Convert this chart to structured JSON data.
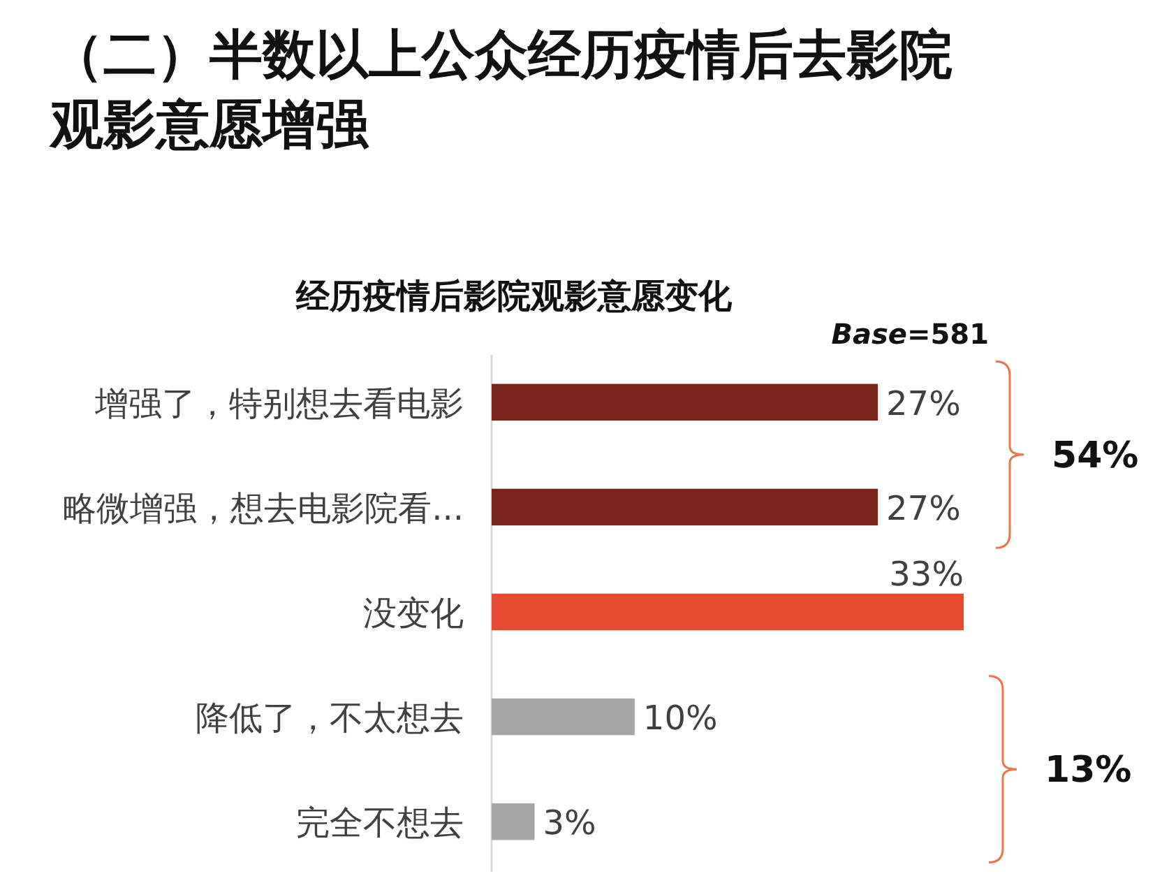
{
  "chart_data": {
    "type": "bar",
    "orientation": "horizontal",
    "title": "（二）半数以上公众经历疫情后去影院观影意愿增强",
    "subtitle": "经历疫情后影院观影意愿变化",
    "categories": [
      "增强了，特别想去看电影",
      "略微增强，想去电影院看...",
      "没变化",
      "降低了，不太想去",
      "完全不想去"
    ],
    "values": [
      27,
      27,
      33,
      10,
      3
    ],
    "colors": [
      "#7a2318",
      "#7a2318",
      "#e64c32",
      "#a6a6a6",
      "#a6a6a6"
    ],
    "value_labels": [
      "27%",
      "27%",
      "33%",
      "10%",
      "3%"
    ],
    "annotations": [
      "Base=581",
      "54%",
      "13%"
    ]
  }
}
